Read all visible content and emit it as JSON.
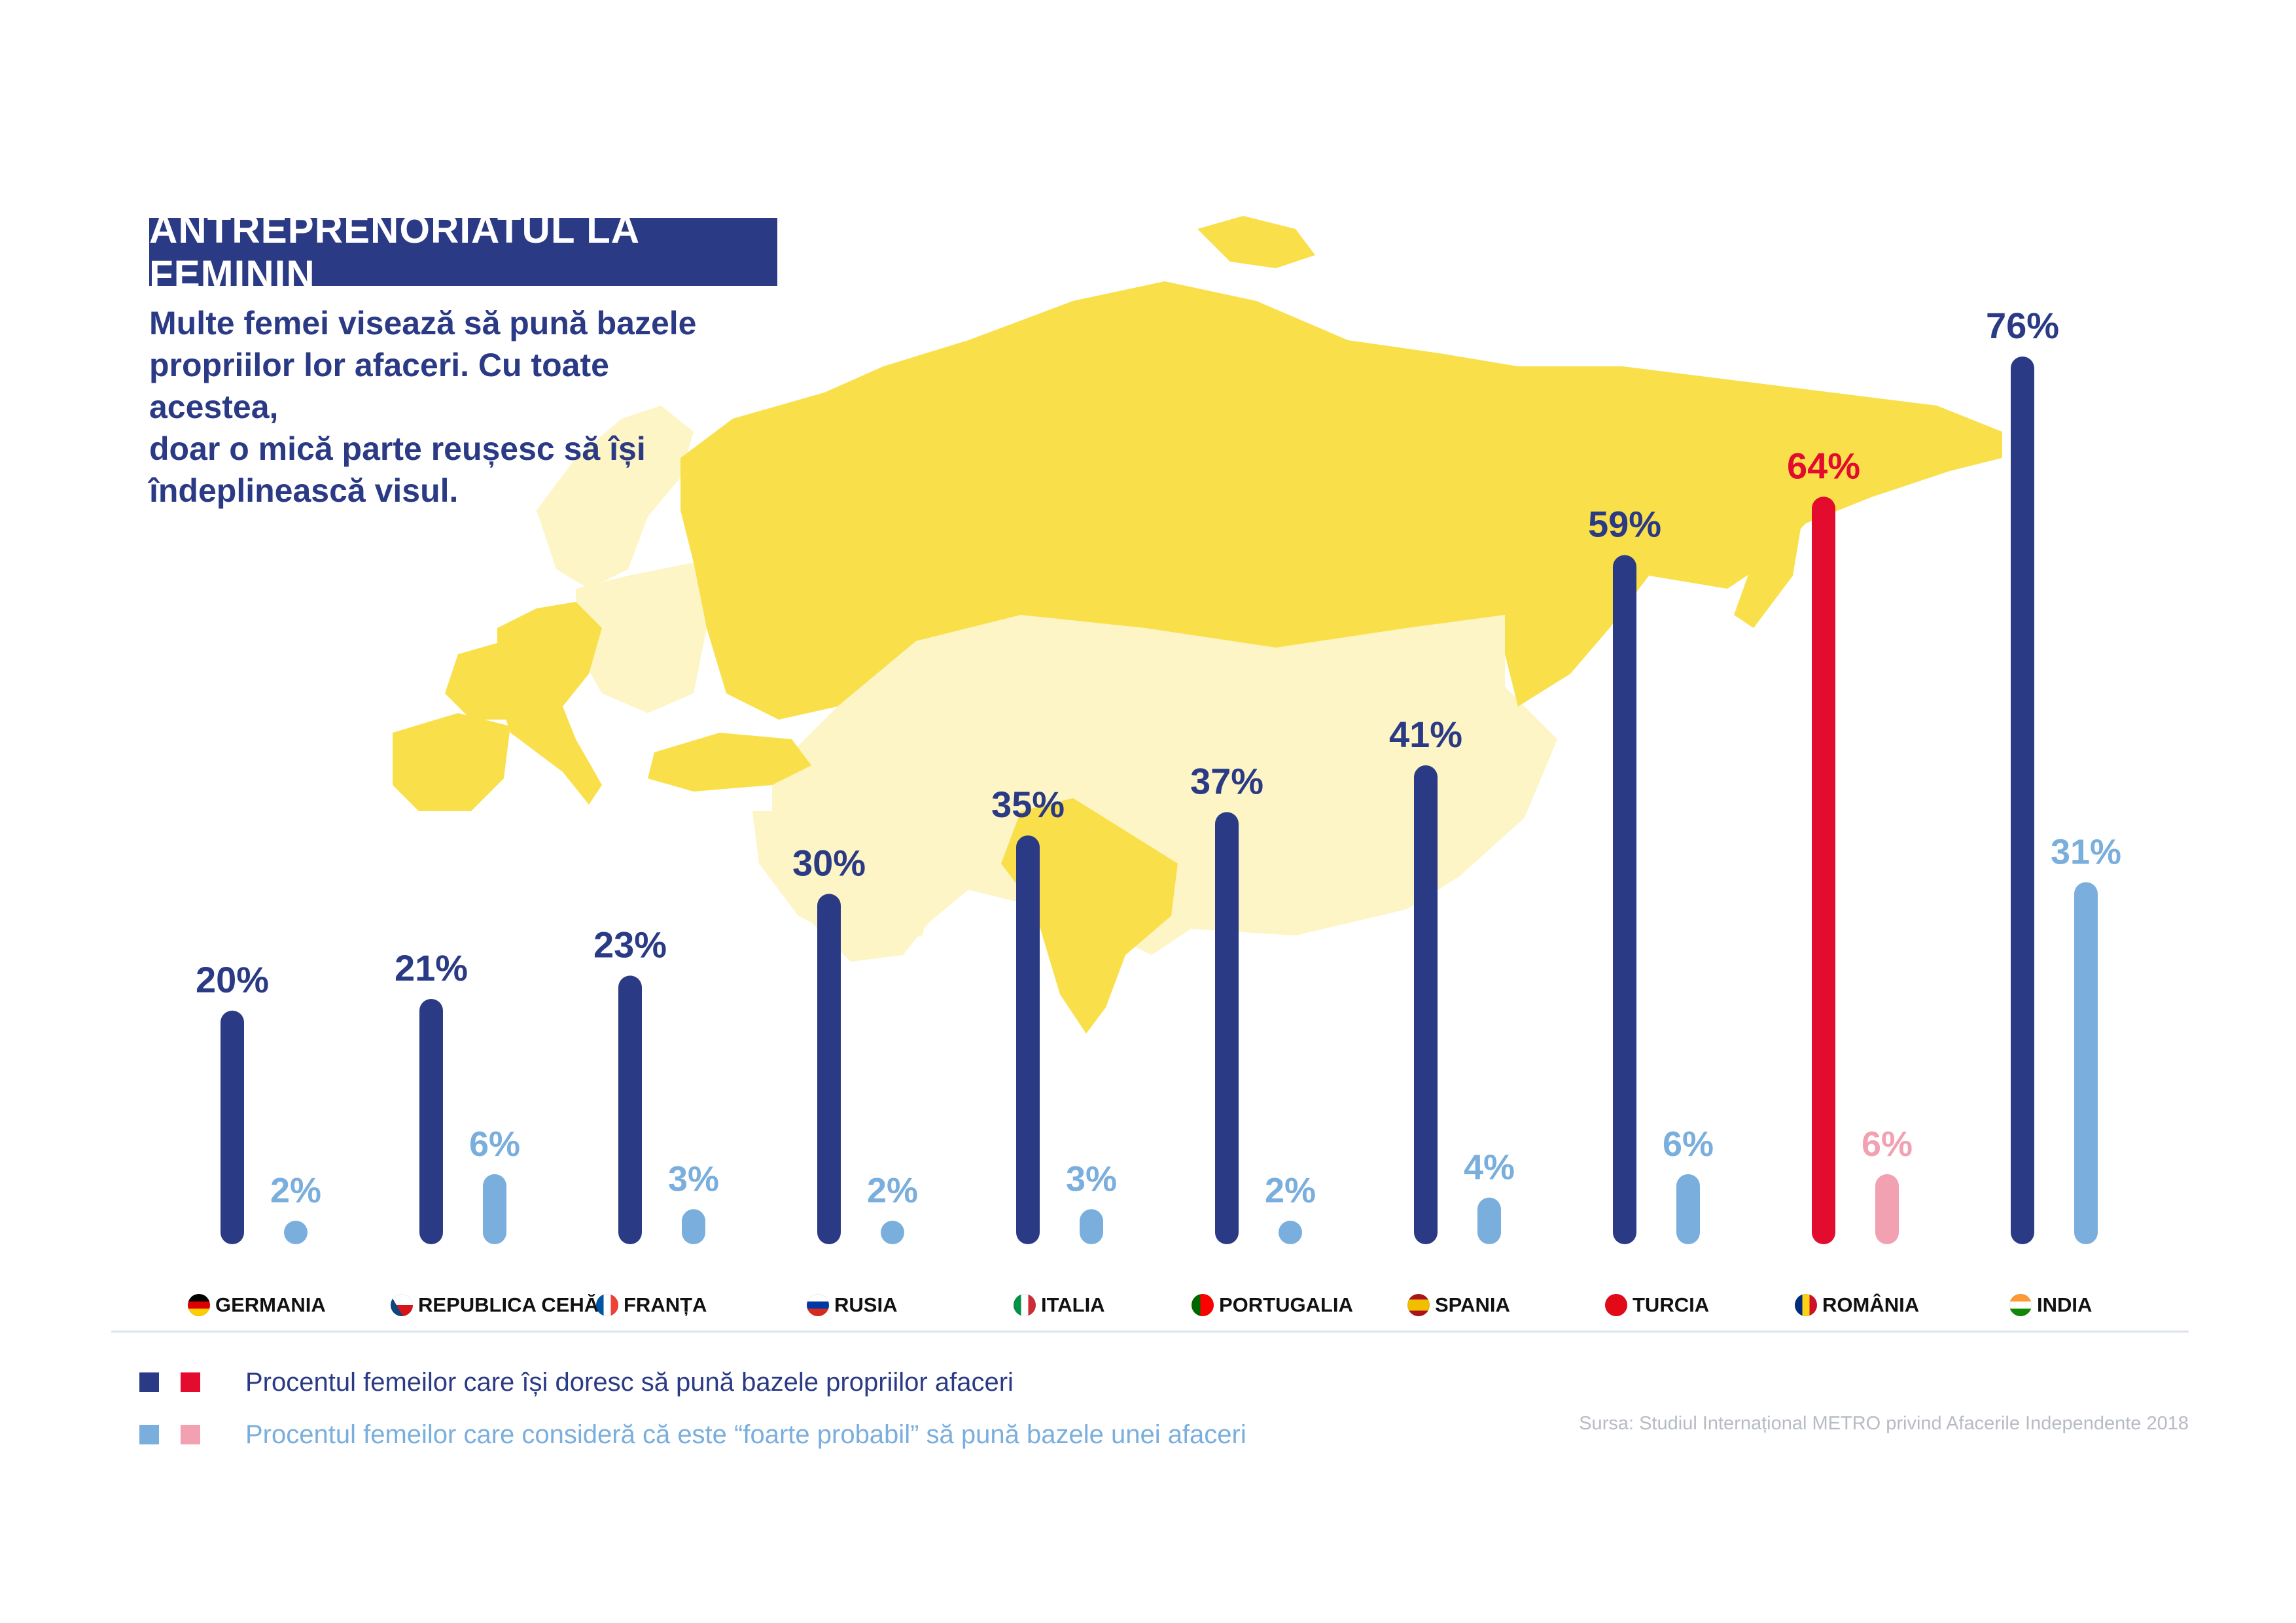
{
  "title": "ANTREPRENORIATUL LA FEMININ",
  "subtitle_lines": [
    "Multe femei visează să pună bazele",
    "propriilor lor afaceri. Cu toate acestea,",
    "doar o mică parte reușesc să își",
    "îndeplinească visul."
  ],
  "chart_data": {
    "type": "bar",
    "categories": [
      "GERMANIA",
      "REPUBLICA CEHĂ",
      "FRANȚA",
      "RUSIA",
      "ITALIA",
      "PORTUGALIA",
      "SPANIA",
      "TURCIA",
      "ROMÂNIA",
      "INDIA"
    ],
    "unit": "%",
    "ylim": [
      0,
      80
    ],
    "series": [
      {
        "name": "Procentul femeilor care își doresc să pună bazele propriilor afaceri",
        "values": [
          20,
          21,
          23,
          30,
          35,
          37,
          41,
          59,
          64,
          76
        ],
        "labels": [
          "20%",
          "21%",
          "23%",
          "30%",
          "35%",
          "37%",
          "41%",
          "59%",
          "64%",
          "76%"
        ]
      },
      {
        "name": "Procentul femeilor care consideră că este “foarte probabil” să pună bazele unei afaceri",
        "values": [
          2,
          6,
          3,
          2,
          3,
          2,
          4,
          6,
          6,
          31
        ],
        "labels": [
          "2%",
          "6%",
          "3%",
          "2%",
          "3%",
          "2%",
          "4%",
          "6%",
          "6%",
          "31%"
        ]
      }
    ],
    "highlight_category": "ROMÂNIA",
    "colors": {
      "dark_blue": "#2b3a85",
      "light_blue": "#7aaedc",
      "red": "#e30b2e",
      "pink": "#f2a1b3"
    },
    "grid": false
  },
  "flags": [
    {
      "country": "GERMANIA",
      "stripes": [
        "#000000",
        "#dd0000",
        "#ffce00"
      ],
      "dir": "h"
    },
    {
      "country": "REPUBLICA CEHĂ",
      "stripes": [
        "#ffffff",
        "#d7141a"
      ],
      "dir": "h",
      "triangle": "#11457e"
    },
    {
      "country": "FRANȚA",
      "stripes": [
        "#0055a4",
        "#ffffff",
        "#ef4135"
      ],
      "dir": "v"
    },
    {
      "country": "RUSIA",
      "stripes": [
        "#ffffff",
        "#0039a6",
        "#d52b1e"
      ],
      "dir": "h"
    },
    {
      "country": "ITALIA",
      "stripes": [
        "#009246",
        "#ffffff",
        "#ce2b37"
      ],
      "dir": "v"
    },
    {
      "country": "PORTUGALIA",
      "stripes": [
        "#006600",
        "#ff0000"
      ],
      "dir": "v",
      "weights": [
        2,
        3
      ]
    },
    {
      "country": "SPANIA",
      "stripes": [
        "#aa151b",
        "#f1bf00",
        "#aa151b"
      ],
      "dir": "h",
      "weights": [
        1,
        2,
        1
      ]
    },
    {
      "country": "TURCIA",
      "stripes": [
        "#e30a17"
      ],
      "dir": "h"
    },
    {
      "country": "ROMÂNIA",
      "stripes": [
        "#002b7f",
        "#fcd116",
        "#ce1126"
      ],
      "dir": "v"
    },
    {
      "country": "INDIA",
      "stripes": [
        "#ff9933",
        "#ffffff",
        "#138808"
      ],
      "dir": "h"
    }
  ],
  "legend": [
    {
      "text": "Procentul femeilor care își doresc să pună bazele propriilor afaceri",
      "swatches": [
        "#2b3a85",
        "#e30b2e"
      ],
      "text_color": "#2b3a85"
    },
    {
      "text": "Procentul femeilor care consideră că este “foarte probabil” să pună bazele unei afaceri",
      "swatches": [
        "#7aaedc",
        "#f2a1b3"
      ],
      "text_color": "#7aaedc"
    }
  ],
  "source": "Sursa: Studiul Internațional METRO privind Afacerile Independente 2018",
  "map_colors": {
    "highlight": "#f9e04b",
    "other": "#fdf5c5"
  }
}
